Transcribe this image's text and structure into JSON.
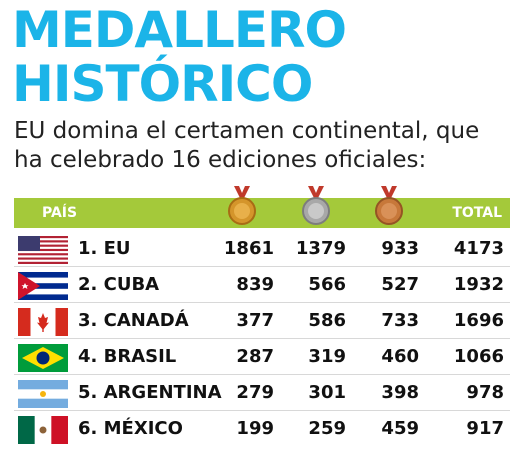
{
  "title_line1": "MEDALLERO",
  "title_line2": "HISTÓRICO",
  "subtitle": "EU domina el certamen continental, que ha celebrado 16 ediciones oficiales:",
  "header": {
    "country": "PAÍS",
    "total": "TOTAL"
  },
  "medal_icons": [
    "gold-medal-icon",
    "silver-medal-icon",
    "bronze-medal-icon"
  ],
  "colors": {
    "title": "#1bb4e8",
    "header_bg": "#a4c93a"
  },
  "rows": [
    {
      "name": "1. EU",
      "gold": "1861",
      "silver": "1379",
      "bronze": "933",
      "total": "4173",
      "flag": "usa-flag-icon"
    },
    {
      "name": "2. CUBA",
      "gold": "839",
      "silver": "566",
      "bronze": "527",
      "total": "1932",
      "flag": "cuba-flag-icon"
    },
    {
      "name": "3. CANADÁ",
      "gold": "377",
      "silver": "586",
      "bronze": "733",
      "total": "1696",
      "flag": "canada-flag-icon"
    },
    {
      "name": "4. BRASIL",
      "gold": "287",
      "silver": "319",
      "bronze": "460",
      "total": "1066",
      "flag": "brazil-flag-icon"
    },
    {
      "name": "5. ARGENTINA",
      "gold": "279",
      "silver": "301",
      "bronze": "398",
      "total": "978",
      "flag": "argentina-flag-icon"
    },
    {
      "name": "6. MÉXICO",
      "gold": "199",
      "silver": "259",
      "bronze": "459",
      "total": "917",
      "flag": "mexico-flag-icon"
    }
  ]
}
